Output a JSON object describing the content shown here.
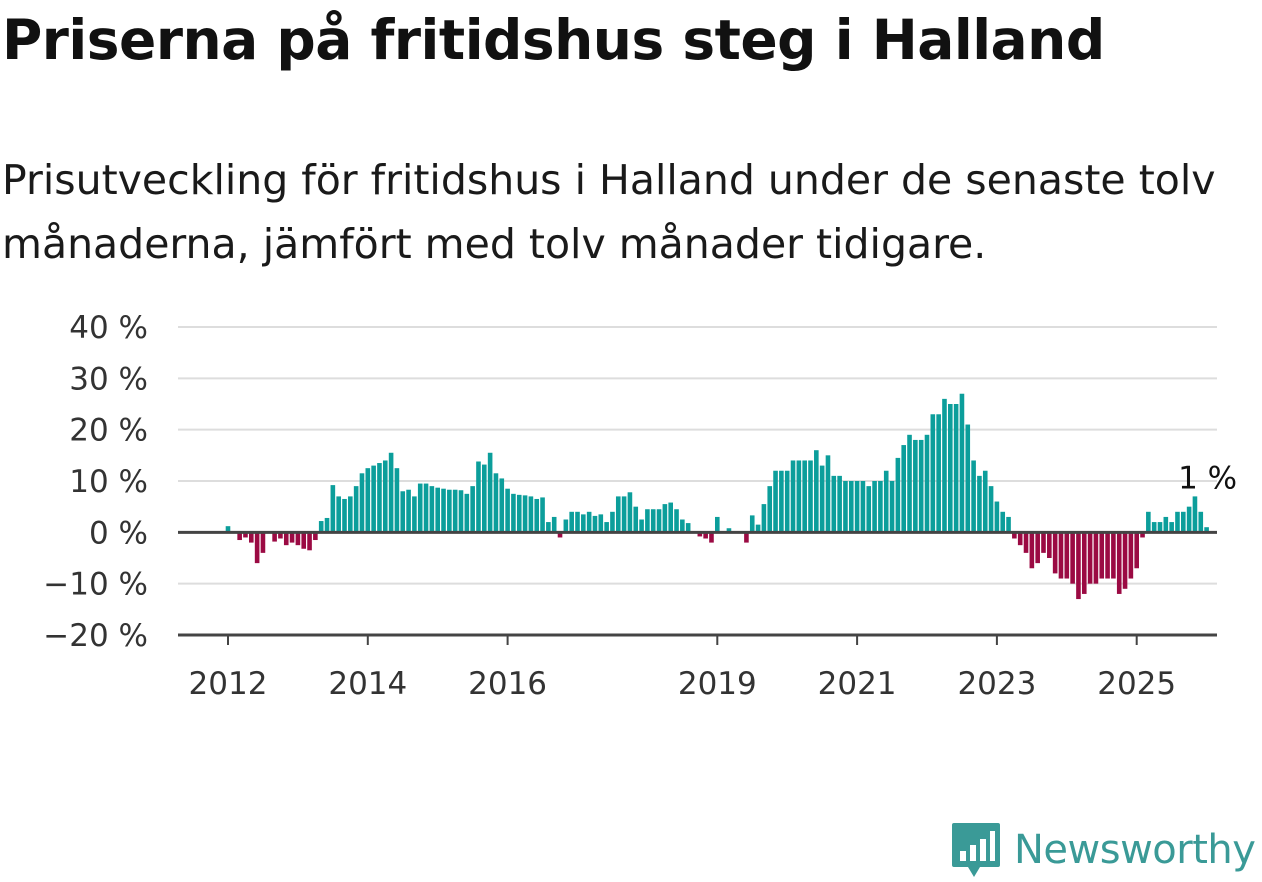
{
  "title": "Priserna på fritidshus steg i Halland",
  "subtitle": "Prisutveckling för fritidshus i Halland under de senaste tolv månaderna, jämfört med tolv månader tidigare.",
  "brand": {
    "name": "Newsworthy",
    "logo_icon": "bar-chart-speech-bubble-icon"
  },
  "colors": {
    "positive": "#0c9e9b",
    "negative": "#9b0a43",
    "grid": "#dddddd",
    "axis": "#444444",
    "brand": "#3a9a97"
  },
  "chart_data": {
    "type": "bar",
    "start": "2012-01",
    "ylim": [
      -20,
      40
    ],
    "yticks": [
      40,
      30,
      20,
      10,
      0,
      -10,
      -20
    ],
    "ytick_labels": [
      "40 %",
      "30 %",
      "20 %",
      "10 %",
      "0 %",
      "−10 %",
      "−20 %"
    ],
    "xticks": [
      2012,
      2014,
      2016,
      2019,
      2021,
      2023,
      2025
    ],
    "xtick_labels": [
      "2012",
      "2014",
      "2016",
      "2019",
      "2021",
      "2023",
      "2025"
    ],
    "annotation": "1 %",
    "grid": true,
    "values": [
      1.2,
      0,
      -1.5,
      -1,
      -2,
      -6,
      -4,
      0,
      -1.8,
      -1.2,
      -2.5,
      -2,
      -2.5,
      -3.2,
      -3.5,
      -1.5,
      2.2,
      2.8,
      9.2,
      7,
      6.5,
      7,
      9,
      11.5,
      12.5,
      13,
      13.5,
      14,
      15.5,
      12.5,
      8,
      8.3,
      7,
      9.5,
      9.5,
      9,
      8.7,
      8.5,
      8.3,
      8.3,
      8.2,
      7.5,
      9,
      13.8,
      13.2,
      15.5,
      11.5,
      10.5,
      8.5,
      7.5,
      7.3,
      7.2,
      7,
      6.5,
      6.8,
      2,
      3,
      -1,
      2.5,
      4,
      4,
      3.5,
      4,
      3.2,
      3.5,
      2,
      4,
      7,
      7,
      7.8,
      5,
      2.5,
      4.5,
      4.5,
      4.5,
      5.5,
      5.8,
      4.5,
      2.5,
      1.8,
      0,
      -0.8,
      -1.2,
      -2,
      3,
      0,
      0.8,
      0,
      0,
      -2,
      3.3,
      1.5,
      5.5,
      9,
      12,
      12,
      12,
      14,
      14,
      14,
      14,
      16,
      13,
      15,
      11,
      11,
      10,
      10,
      10,
      10,
      9,
      10,
      10,
      12,
      10,
      14.5,
      17,
      19,
      18,
      18,
      19,
      23,
      23,
      26,
      25,
      25,
      27,
      21,
      14,
      11,
      12,
      9,
      6,
      4,
      3,
      -1.2,
      -2.5,
      -4,
      -7,
      -6,
      -4,
      -5,
      -8,
      -9,
      -9,
      -10,
      -13,
      -12,
      -10,
      -10,
      -9,
      -9,
      -9,
      -12,
      -11,
      -9,
      -7,
      -1,
      4,
      2,
      2,
      3,
      2,
      4,
      4,
      5,
      7,
      4,
      1
    ]
  }
}
